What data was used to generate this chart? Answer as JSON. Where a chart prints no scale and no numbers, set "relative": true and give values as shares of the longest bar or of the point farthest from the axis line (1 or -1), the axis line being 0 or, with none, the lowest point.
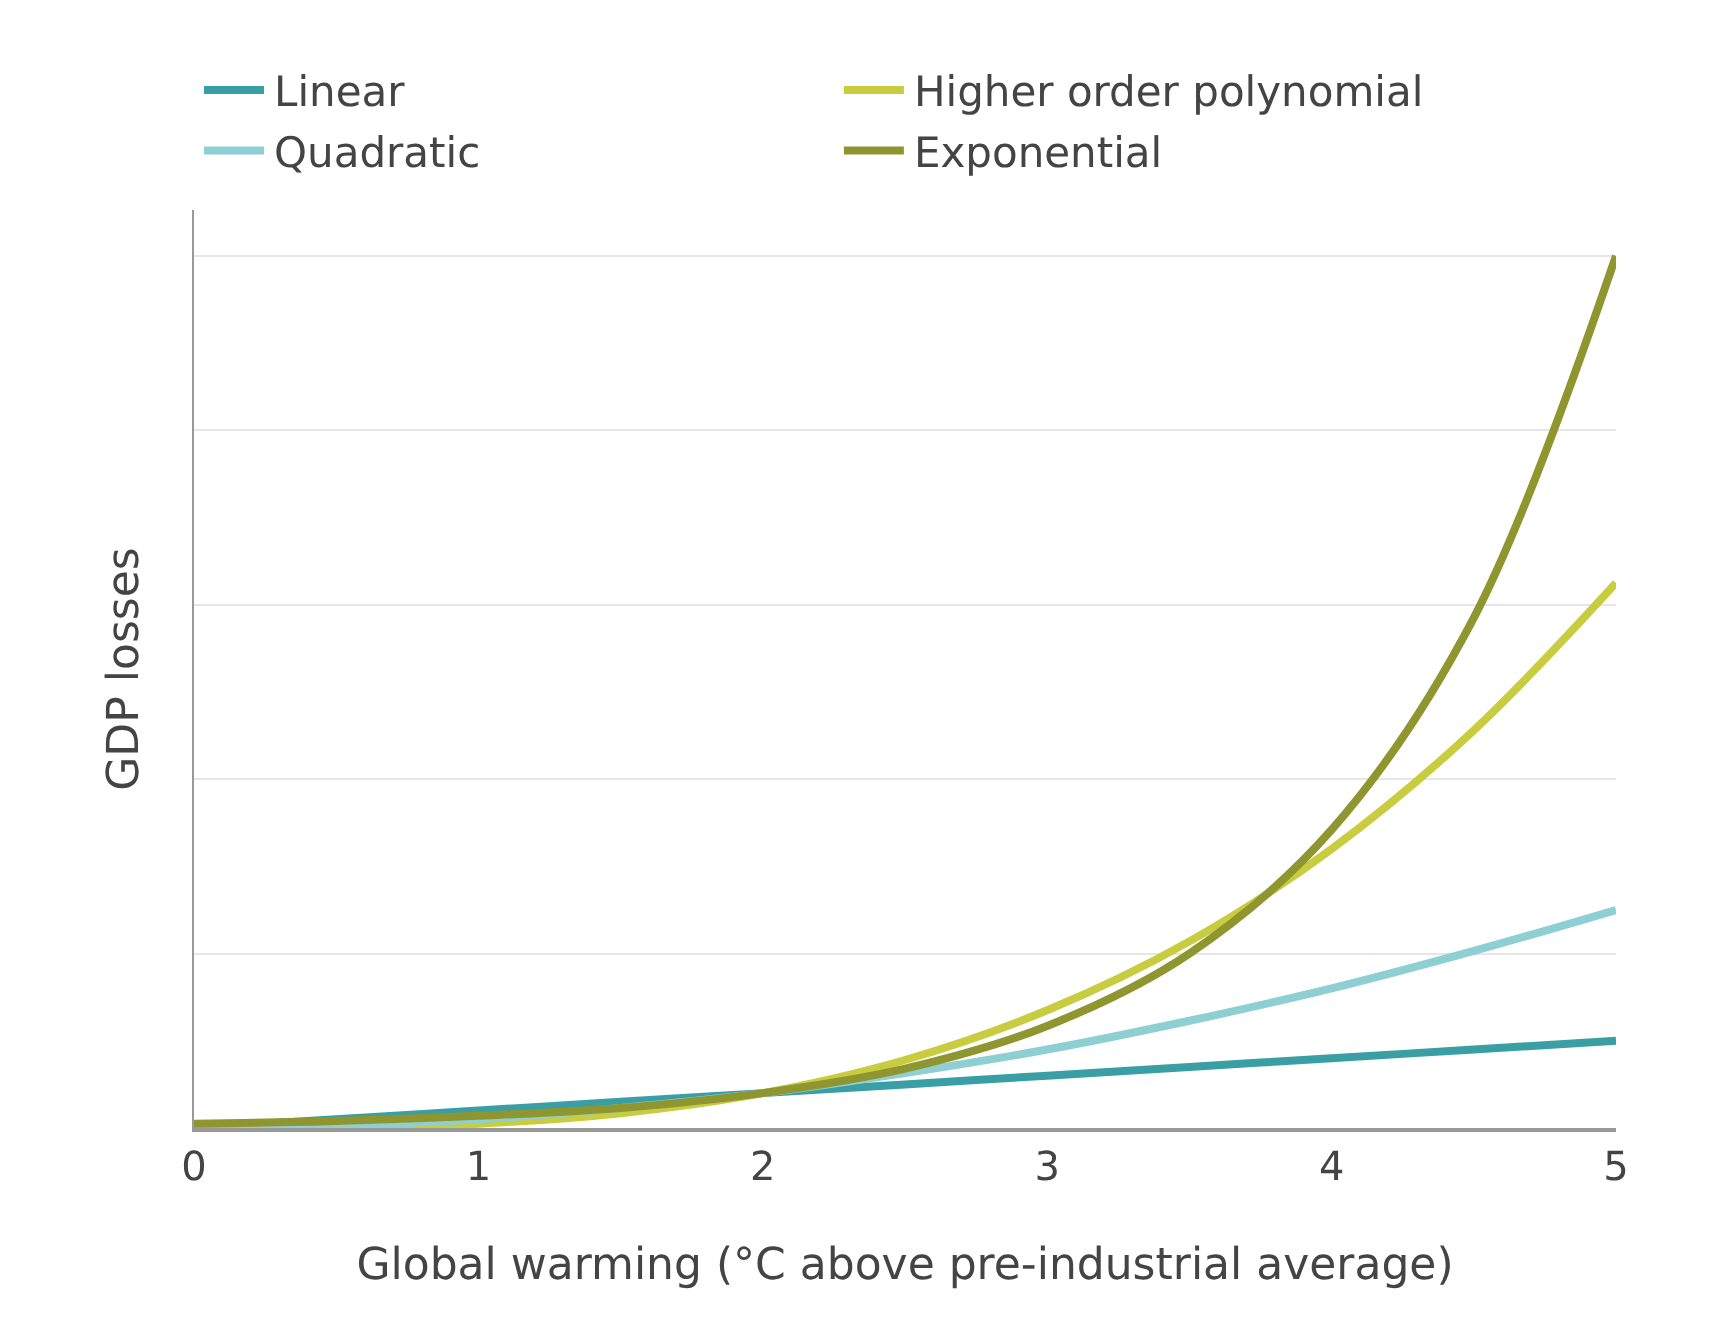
{
  "chart_data": {
    "type": "line",
    "relative": true,
    "xlabel": "Global warming (°C above pre-industrial average)",
    "ylabel": "GDP losses",
    "x": [
      0,
      0.5,
      1,
      1.5,
      2,
      2.5,
      3,
      3.5,
      4,
      4.5,
      5
    ],
    "xlim": [
      0,
      5
    ],
    "xticks": [
      0,
      1,
      2,
      3,
      4,
      5
    ],
    "grid": "y",
    "legend": "top left",
    "marker": "none",
    "line_style": "solid",
    "series": [
      {
        "name": "Linear",
        "color": "#3a9ea5",
        "values": [
          0,
          0.01,
          0.02,
          0.03,
          0.04,
          0.05,
          0.06,
          0.07,
          0.08,
          0.09,
          0.1
        ]
      },
      {
        "name": "Higher order polynomial",
        "color": "#c8cc3f",
        "values": [
          0,
          0.001,
          0.005,
          0.017,
          0.04,
          0.078,
          0.135,
          0.214,
          0.32,
          0.456,
          0.625
        ]
      },
      {
        "name": "Quadratic",
        "color": "#8ecfd3",
        "values": [
          0,
          0.003,
          0.01,
          0.023,
          0.04,
          0.063,
          0.09,
          0.123,
          0.16,
          0.203,
          0.25
        ]
      },
      {
        "name": "Exponential",
        "color": "#8f9630",
        "values": [
          0.005,
          0.008,
          0.014,
          0.023,
          0.04,
          0.068,
          0.117,
          0.2,
          0.342,
          0.585,
          1
        ]
      }
    ]
  }
}
